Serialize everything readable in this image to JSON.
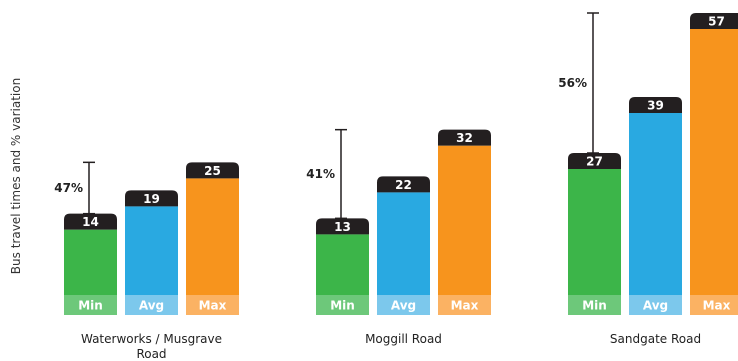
{
  "chart_data": {
    "type": "bar",
    "ylabel": "Bus travel times and % variation",
    "categories": [
      "Waterworks / Musgrave Road",
      "Moggill Road",
      "Sandgate Road"
    ],
    "category_lines": [
      [
        "Waterworks / Musgrave",
        "Road"
      ],
      [
        "Moggill Road"
      ],
      [
        "Sandgate Road"
      ]
    ],
    "series": [
      {
        "name": "Min",
        "values": [
          14,
          13,
          27
        ],
        "color": "#3cb549",
        "label_bg": "#6dc87a"
      },
      {
        "name": "Avg",
        "values": [
          19,
          22,
          39
        ],
        "color": "#29a9e1",
        "label_bg": "#7cc8ec"
      },
      {
        "name": "Max",
        "values": [
          25,
          32,
          57
        ],
        "color": "#f7941d",
        "label_bg": "#fbb263"
      }
    ],
    "variation": [
      "47%",
      "41%",
      "56%"
    ],
    "cap_color": "#231f20",
    "ylim": [
      0,
      57
    ],
    "grid": false
  }
}
